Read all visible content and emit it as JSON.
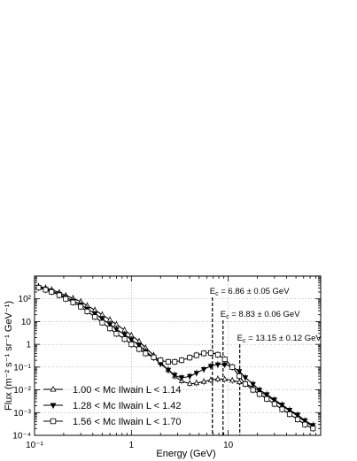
{
  "chart_data": {
    "type": "scatter",
    "title": "",
    "xlabel": "Energy (GeV)",
    "ylabel": "Flux (m⁻² s⁻¹ sr⁻¹ GeV⁻¹)",
    "x_scale": "log",
    "y_scale": "log",
    "xlim": [
      0.1,
      90
    ],
    "ylim": [
      0.0001,
      1000
    ],
    "grid": true,
    "legend_position": "bottom-left",
    "x_ticks": [
      {
        "value": 0.1,
        "label": "10⁻¹"
      },
      {
        "value": 1,
        "label": "1"
      },
      {
        "value": 10,
        "label": "10"
      }
    ],
    "y_ticks": [
      {
        "value": 0.0001,
        "label": "10⁻⁴"
      },
      {
        "value": 0.001,
        "label": "10⁻³"
      },
      {
        "value": 0.01,
        "label": "10⁻²"
      },
      {
        "value": 0.1,
        "label": "10⁻¹"
      },
      {
        "value": 1,
        "label": "1"
      },
      {
        "value": 10,
        "label": "10"
      },
      {
        "value": 100,
        "label": "10²"
      }
    ],
    "series": [
      {
        "name": "1.00 < Mc Ilwain L < 1.14",
        "marker": "triangle-open",
        "x": [
          0.11,
          0.13,
          0.15,
          0.18,
          0.21,
          0.25,
          0.3,
          0.35,
          0.42,
          0.5,
          0.6,
          0.7,
          0.85,
          1.0,
          1.2,
          1.4,
          1.7,
          2.0,
          2.4,
          2.8,
          3.3,
          4.0,
          4.7,
          5.6,
          6.6,
          7.8,
          9.2,
          11,
          13,
          15,
          18,
          21,
          25,
          30,
          36,
          43,
          52,
          62,
          75
        ],
        "y": [
          350,
          300,
          250,
          190,
          140,
          105,
          75,
          50,
          32,
          20,
          12,
          7.5,
          4.2,
          2.5,
          1.35,
          0.7,
          0.33,
          0.16,
          0.075,
          0.04,
          0.025,
          0.019,
          0.02,
          0.023,
          0.027,
          0.03,
          0.029,
          0.026,
          0.022,
          0.018,
          0.013,
          0.0085,
          0.0055,
          0.0033,
          0.002,
          0.0012,
          0.0007,
          0.0004,
          0.00025
        ]
      },
      {
        "name": "1.28 < Mc Ilwain L < 1.42",
        "marker": "triangle-filled",
        "x": [
          0.11,
          0.13,
          0.15,
          0.18,
          0.21,
          0.25,
          0.3,
          0.35,
          0.42,
          0.5,
          0.6,
          0.7,
          0.85,
          1.0,
          1.2,
          1.4,
          1.7,
          2.0,
          2.4,
          2.8,
          3.3,
          4.0,
          4.7,
          5.6,
          6.6,
          7.8,
          9.2,
          11,
          13,
          15,
          18,
          21,
          25,
          30,
          36,
          43,
          52,
          62,
          75
        ],
        "y": [
          330,
          270,
          220,
          160,
          115,
          82,
          55,
          36,
          22,
          13,
          7.5,
          4.6,
          2.7,
          1.6,
          0.9,
          0.5,
          0.26,
          0.14,
          0.075,
          0.045,
          0.035,
          0.04,
          0.055,
          0.08,
          0.11,
          0.13,
          0.13,
          0.1,
          0.065,
          0.035,
          0.018,
          0.01,
          0.0063,
          0.0037,
          0.0022,
          0.0013,
          0.0008,
          0.00045,
          0.00028
        ]
      },
      {
        "name": "1.56 < Mc Ilwain L < 1.70",
        "marker": "square-open",
        "x": [
          0.11,
          0.13,
          0.15,
          0.18,
          0.21,
          0.25,
          0.3,
          0.35,
          0.42,
          0.5,
          0.6,
          0.7,
          0.85,
          1.0,
          1.2,
          1.4,
          1.7,
          2.0,
          2.4,
          2.8,
          3.3,
          4.0,
          4.7,
          5.6,
          6.6,
          7.8,
          9.2,
          11,
          13,
          15,
          18,
          21,
          25,
          30,
          36,
          43,
          52,
          62,
          75
        ],
        "y": [
          310,
          250,
          200,
          145,
          100,
          70,
          45,
          28,
          16,
          9,
          5,
          2.9,
          1.7,
          1.0,
          0.62,
          0.4,
          0.27,
          0.2,
          0.17,
          0.17,
          0.2,
          0.26,
          0.33,
          0.4,
          0.42,
          0.35,
          0.22,
          0.1,
          0.04,
          0.018,
          0.01,
          0.0065,
          0.004,
          0.0024,
          0.0014,
          0.00085,
          0.0005,
          0.0003,
          0.0002
        ]
      }
    ],
    "annotations": [
      {
        "label": "E",
        "subscript": "c",
        "text": " = 6.86 ± 0.05 GeV",
        "x": 6.86
      },
      {
        "label": "E",
        "subscript": "c",
        "text": " = 8.83 ± 0.06 GeV",
        "x": 8.83
      },
      {
        "label": "E",
        "subscript": "c",
        "text": " = 13.15 ± 0.12 GeV",
        "x": 13.15
      }
    ]
  }
}
